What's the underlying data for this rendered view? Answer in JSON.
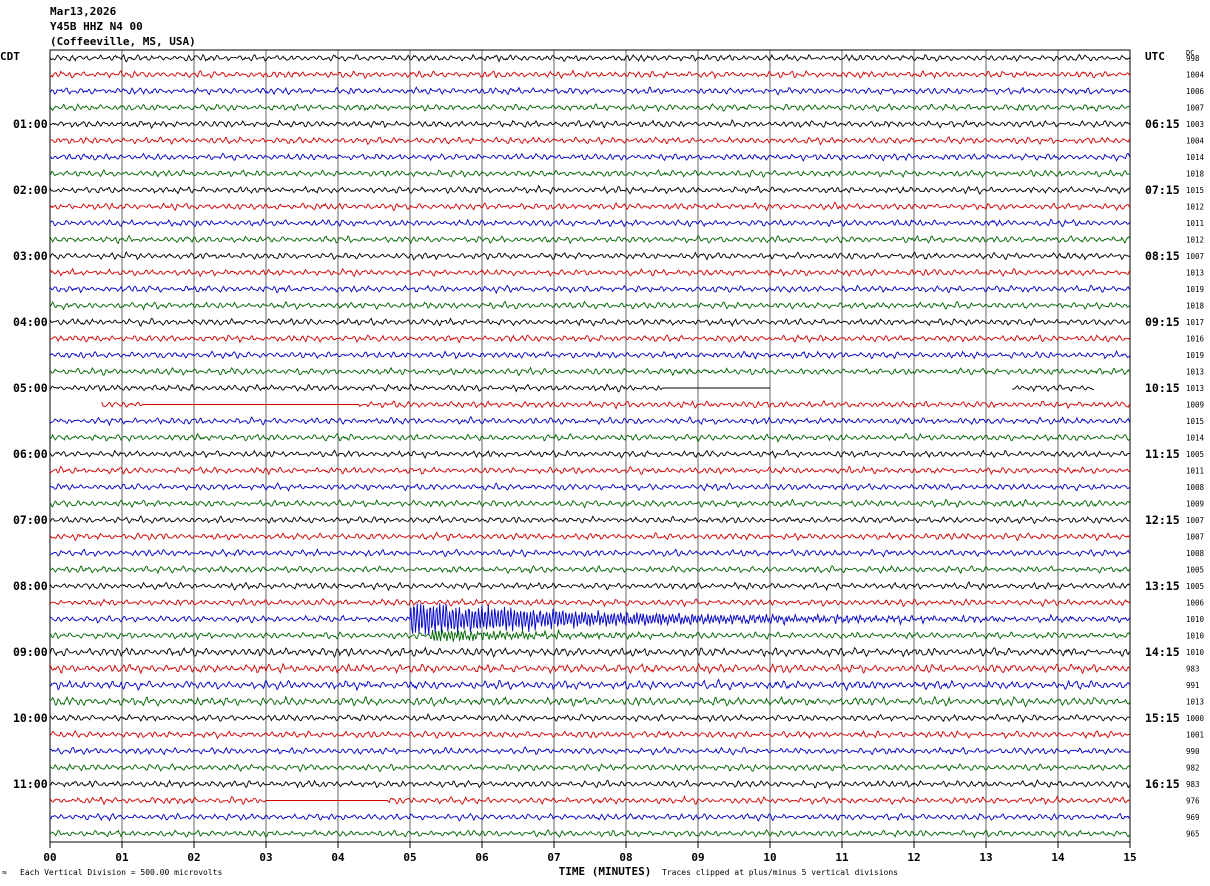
{
  "header": {
    "date": "Mar13,2026",
    "station": "Y45B HHZ N4 00",
    "location": "(Coffeeville, MS, USA)"
  },
  "left_tz": "CDT",
  "right_tz": "UTC",
  "dc_label": "DC",
  "footer": {
    "scale": "Each Vertical Division =  500.00 microvolts",
    "clip": "Traces clipped at plus/minus 5 vertical divisions"
  },
  "chart_data": {
    "type": "helicorder",
    "xlabel": "TIME (MINUTES)",
    "x_ticks": [
      "00",
      "01",
      "02",
      "03",
      "04",
      "05",
      "06",
      "07",
      "08",
      "09",
      "10",
      "11",
      "12",
      "13",
      "14",
      "15"
    ],
    "x_range": [
      0,
      15
    ],
    "trace_colors": [
      "#000000",
      "#d40000",
      "#0000c8",
      "#006400"
    ],
    "left_hour_labels": [
      {
        "row": 4,
        "label": "01:00"
      },
      {
        "row": 8,
        "label": "02:00"
      },
      {
        "row": 12,
        "label": "03:00"
      },
      {
        "row": 16,
        "label": "04:00"
      },
      {
        "row": 20,
        "label": "05:00"
      },
      {
        "row": 24,
        "label": "06:00"
      },
      {
        "row": 28,
        "label": "07:00"
      },
      {
        "row": 32,
        "label": "08:00"
      },
      {
        "row": 36,
        "label": "09:00"
      },
      {
        "row": 40,
        "label": "10:00"
      },
      {
        "row": 44,
        "label": "11:00"
      }
    ],
    "right_hour_labels": [
      {
        "row": 4,
        "label": "06:15"
      },
      {
        "row": 8,
        "label": "07:15"
      },
      {
        "row": 12,
        "label": "08:15"
      },
      {
        "row": 16,
        "label": "09:15"
      },
      {
        "row": 20,
        "label": "10:15"
      },
      {
        "row": 24,
        "label": "11:15"
      },
      {
        "row": 28,
        "label": "12:15"
      },
      {
        "row": 32,
        "label": "13:15"
      },
      {
        "row": 36,
        "label": "14:15"
      },
      {
        "row": 40,
        "label": "15:15"
      },
      {
        "row": 44,
        "label": "16:15"
      }
    ],
    "dc_offsets": [
      "998",
      "1004",
      "1006",
      "1007",
      "1003",
      "1004",
      "1014",
      "1018",
      "1015",
      "1012",
      "1011",
      "1012",
      "1007",
      "1013",
      "1019",
      "1018",
      "1017",
      "1016",
      "1019",
      "1013",
      "1013",
      "1009",
      "1015",
      "1014",
      "1005",
      "1011",
      "1008",
      "1009",
      "1007",
      "1007",
      "1008",
      "1005",
      "1005",
      "1006",
      "1010",
      "1010",
      "1010",
      "983",
      "991",
      "1013",
      "1000",
      "1001",
      "990",
      "982",
      "983",
      "976",
      "969",
      "965"
    ],
    "events": [
      {
        "row": 34,
        "start_min": 5.0,
        "decay_min": 2.8,
        "amp": 4.0
      },
      {
        "row": 35,
        "start_min": 5.3,
        "decay_min": 1.5,
        "amp": 1.3
      }
    ],
    "gaps": [
      {
        "row": 20,
        "from_min": 8.55,
        "to_min": 10.0,
        "flat": true
      },
      {
        "row": 20,
        "from_min": 10.0,
        "to_min": 13.35,
        "flat": false
      },
      {
        "row": 20,
        "from_min": 14.5,
        "to_min": 15.0,
        "flat": false
      },
      {
        "row": 21,
        "from_min": 0.0,
        "to_min": 0.7,
        "flat": false
      },
      {
        "row": 21,
        "from_min": 1.3,
        "to_min": 4.3,
        "flat": true
      },
      {
        "row": 45,
        "from_min": 3.0,
        "to_min": 4.7,
        "flat": true
      }
    ]
  }
}
